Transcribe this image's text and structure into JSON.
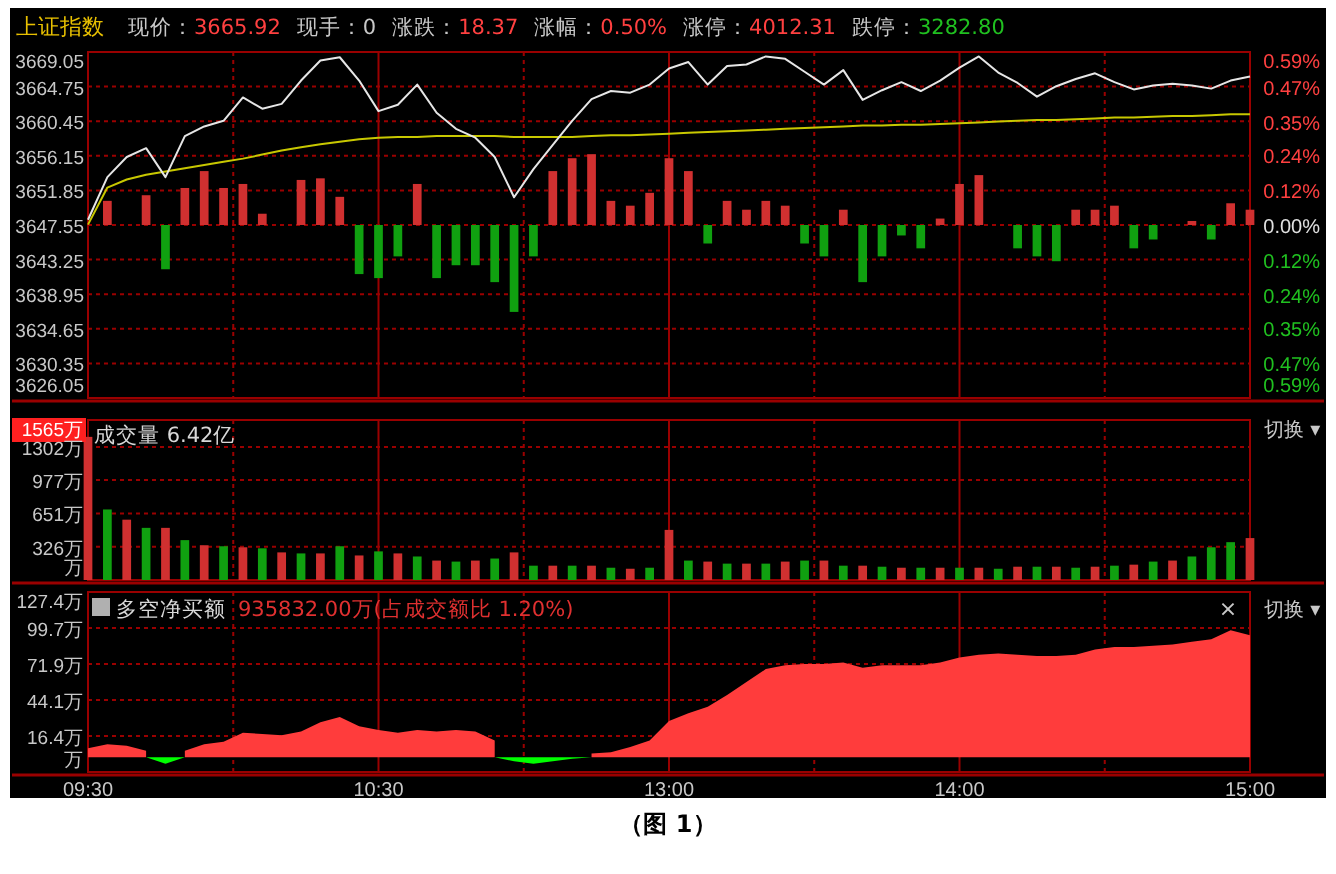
{
  "chart_data": [
    {
      "type": "line",
      "title": "上证指数",
      "annotations": [
        "现价：3665.92",
        "现手：0",
        "涨跌：18.37",
        "涨幅：0.50%",
        "涨停：4012.31",
        "跌停：3282.80"
      ],
      "categories": [
        null,
        null,
        null,
        null,
        null,
        null,
        null,
        null,
        null,
        null,
        null,
        null,
        null,
        null,
        null,
        null,
        null,
        null,
        null,
        null,
        null,
        null,
        null,
        null,
        null,
        null,
        null,
        null,
        null,
        null,
        null,
        null,
        null,
        null,
        null,
        null,
        null,
        null,
        null,
        null,
        null,
        null,
        null,
        null,
        null,
        null,
        null,
        null,
        null,
        null,
        null,
        null,
        null,
        null,
        null,
        null,
        null,
        null,
        null,
        null,
        null
      ],
      "tick_labels": "y",
      "grid": true,
      "ylim": [
        3626.05,
        3669.05
      ],
      "yticks": [
        3669.05,
        3664.75,
        3660.45,
        3656.15,
        3651.85,
        3647.55,
        3643.25,
        3638.95,
        3634.65,
        3630.35,
        3626.05
      ],
      "y2lim": [
        -0.59,
        0.59
      ],
      "y2ticks": [
        {
          "value": 0.59,
          "label": "0.59%"
        },
        {
          "value": 0.47,
          "label": "0.47%"
        },
        {
          "value": 0.35,
          "label": "0.35%"
        },
        {
          "value": 0.24,
          "label": "0.24%"
        },
        {
          "value": 0.12,
          "label": "0.12%"
        },
        {
          "value": 0,
          "label": "0.00%"
        },
        {
          "value": -0.12,
          "label": "0.12%"
        },
        {
          "value": -0.24,
          "label": "0.24%"
        },
        {
          "value": -0.35,
          "label": "0.35%"
        },
        {
          "value": -0.47,
          "label": "0.47%"
        },
        {
          "value": -0.59,
          "label": "0.59%"
        }
      ],
      "series": [
        {
          "type": "bar",
          "values": [
            null,
            3.0,
            null,
            3.7,
            -5.5,
            4.6,
            6.7,
            4.6,
            5.1,
            1.4,
            null,
            5.6,
            5.8,
            3.5,
            -6.1,
            -6.6,
            -3.9,
            5.1,
            -6.6,
            -5.0,
            -5.0,
            -7.1,
            -10.8,
            -3.9,
            6.7,
            8.3,
            8.8,
            3.0,
            2.4,
            4.0,
            8.3,
            6.7,
            -2.3,
            3.0,
            1.9,
            3.0,
            2.4,
            -2.3,
            -3.9,
            1.9,
            -7.1,
            -3.9,
            -1.3,
            -2.9,
            0.8,
            5.1,
            6.2,
            null,
            -2.9,
            -3.9,
            -4.5,
            1.9,
            1.9,
            2.4,
            -2.9,
            -1.8,
            null,
            0.5,
            -1.8,
            2.7,
            1.9
          ],
          "colors": [
            null,
            "#d03030",
            null,
            "#d03030",
            "#10a010",
            "#d03030",
            "#d03030",
            "#d03030",
            "#d03030",
            "#d03030",
            null,
            "#d03030",
            "#d03030",
            "#d03030",
            "#10a010",
            "#10a010",
            "#10a010",
            "#d03030",
            "#10a010",
            "#10a010",
            "#10a010",
            "#10a010",
            "#10a010",
            "#10a010",
            "#d03030",
            "#d03030",
            "#d03030",
            "#d03030",
            "#d03030",
            "#d03030",
            "#d03030",
            "#d03030",
            "#10a010",
            "#d03030",
            "#d03030",
            "#d03030",
            "#d03030",
            "#10a010",
            "#10a010",
            "#d03030",
            "#10a010",
            "#10a010",
            "#10a010",
            "#10a010",
            "#d03030",
            "#d03030",
            "#d03030",
            null,
            "#10a010",
            "#10a010",
            "#10a010",
            "#d03030",
            "#d03030",
            "#d03030",
            "#10a010",
            "#10a010",
            null,
            "#d03030",
            "#10a010",
            "#d03030",
            "#d03030"
          ],
          "base": [
            null,
            3647.55,
            null,
            3647.55,
            3647.55,
            3647.55,
            3647.55,
            3647.55,
            3647.55,
            3647.55,
            null,
            3647.55,
            3647.55,
            3647.55,
            3647.55,
            3647.55,
            3647.55,
            3647.55,
            3647.55,
            3647.55,
            3647.55,
            3647.55,
            3647.55,
            3647.55,
            3647.55,
            3647.55,
            3647.55,
            3647.55,
            3647.55,
            3647.55,
            3647.55,
            3647.55,
            3647.55,
            3647.55,
            3647.55,
            3647.55,
            3647.55,
            3647.55,
            3647.55,
            3647.55,
            3647.55,
            3647.55,
            3647.55,
            3647.55,
            3647.55,
            3647.55,
            3647.55,
            null,
            3647.55,
            3647.55,
            3647.55,
            3647.55,
            3647.55,
            3647.55,
            3647.55,
            3647.55,
            null,
            3647.55,
            3647.55,
            3647.55,
            3647.55
          ]
        },
        {
          "type": "line",
          "color": "#c8c800",
          "values": [
            3647.6,
            3652.2,
            3653.2,
            3653.8,
            3654.2,
            3654.6,
            3655.0,
            3655.4,
            3655.8,
            3656.3,
            3656.8,
            3657.2,
            3657.6,
            3657.9,
            3658.2,
            3658.4,
            3658.5,
            3658.5,
            3658.6,
            3658.6,
            3658.6,
            3658.6,
            3658.5,
            3658.5,
            3658.5,
            3658.5,
            3658.6,
            3658.7,
            3658.7,
            3658.8,
            3658.9,
            3659.0,
            3659.1,
            3659.2,
            3659.3,
            3659.4,
            3659.5,
            3659.6,
            3659.7,
            3659.8,
            3659.9,
            3659.9,
            3660.0,
            3660.0,
            3660.1,
            3660.2,
            3660.3,
            3660.4,
            3660.5,
            3660.6,
            3660.6,
            3660.7,
            3660.8,
            3660.9,
            3660.9,
            3661.0,
            3661.1,
            3661.1,
            3661.2,
            3661.3,
            3661.3
          ]
        },
        {
          "color": "#e6e6e6",
          "values": [
            3648.2,
            3653.5,
            3656.0,
            3657.1,
            3653.5,
            3658.6,
            3659.8,
            3660.5,
            3663.4,
            3662.0,
            3662.6,
            3665.5,
            3668.0,
            3668.4,
            3665.5,
            3661.7,
            3662.5,
            3665.0,
            3661.5,
            3659.5,
            3658.4,
            3656.0,
            3651.0,
            3654.5,
            3657.5,
            3660.5,
            3663.2,
            3664.2,
            3664.0,
            3665.0,
            3667.0,
            3667.8,
            3665.0,
            3667.3,
            3667.5,
            3668.5,
            3668.2,
            3666.6,
            3665.0,
            3666.8,
            3663.1,
            3664.3,
            3665.3,
            3664.2,
            3665.5,
            3667.1,
            3668.5,
            3666.5,
            3665.2,
            3663.5,
            3664.8,
            3665.7,
            3666.4,
            3665.3,
            3664.4,
            3664.9,
            3665.1,
            3664.9,
            3664.5,
            3665.5,
            3666.0
          ]
        }
      ]
    },
    {
      "type": "bar",
      "title": "成交量 6.42亿",
      "annotations": [
        "切换 ▾"
      ],
      "categories": [
        null,
        null,
        null,
        null,
        null,
        null,
        null,
        null,
        null,
        null,
        null,
        null,
        null,
        null,
        null,
        null,
        null,
        null,
        null,
        null,
        null,
        null,
        null,
        null,
        null,
        null,
        null,
        null,
        null,
        null,
        null,
        null,
        null,
        null,
        null,
        null,
        null,
        null,
        null,
        null,
        null,
        null,
        null,
        null,
        null,
        null,
        null,
        null,
        null,
        null,
        null,
        null,
        null,
        null,
        null,
        null,
        null,
        null,
        null,
        null,
        null
      ],
      "tick_labels": "y",
      "grid": true,
      "ylim": [
        0,
        1565
      ],
      "yticks": [
        {
          "value": 1565,
          "label": "1565万"
        },
        {
          "value": 1302,
          "label": "1302万"
        },
        {
          "value": 977,
          "label": "977万"
        },
        {
          "value": 651,
          "label": "651万"
        },
        {
          "value": 326,
          "label": "326万"
        },
        {
          "value": 0,
          "label": "万"
        }
      ],
      "values": [
        1400,
        690,
        590,
        510,
        510,
        390,
        340,
        330,
        320,
        310,
        270,
        260,
        260,
        330,
        240,
        280,
        260,
        230,
        190,
        180,
        190,
        210,
        270,
        140,
        140,
        140,
        140,
        120,
        110,
        120,
        490,
        190,
        180,
        160,
        160,
        160,
        180,
        190,
        190,
        140,
        140,
        130,
        120,
        120,
        120,
        120,
        120,
        110,
        130,
        130,
        130,
        120,
        130,
        140,
        150,
        180,
        190,
        230,
        320,
        370,
        410
      ],
      "colors": [
        "#d03030",
        "#10a010",
        "#d03030",
        "#10a010",
        "#d03030",
        "#10a010",
        "#d03030",
        "#10a010",
        "#d03030",
        "#10a010",
        "#d03030",
        "#10a010",
        "#d03030",
        "#10a010",
        "#d03030",
        "#10a010",
        "#d03030",
        "#10a010",
        "#d03030",
        "#10a010",
        "#d03030",
        "#10a010",
        "#d03030",
        "#10a010",
        "#d03030",
        "#10a010",
        "#d03030",
        "#10a010",
        "#d03030",
        "#10a010",
        "#d03030",
        "#10a010",
        "#d03030",
        "#10a010",
        "#d03030",
        "#10a010",
        "#d03030",
        "#10a010",
        "#d03030",
        "#10a010",
        "#d03030",
        "#10a010",
        "#d03030",
        "#10a010",
        "#d03030",
        "#10a010",
        "#d03030",
        "#10a010",
        "#d03030",
        "#10a010",
        "#d03030",
        "#10a010",
        "#d03030",
        "#10a010",
        "#d03030",
        "#10a010",
        "#d03030",
        "#10a010",
        "#10a010",
        "#10a010",
        "#d03030"
      ]
    },
    {
      "type": "area",
      "title": "多空净买额",
      "subtitle": "935832.00万(占成交额比 1.20%)",
      "annotations": [
        "×",
        "切换 ▾",
        "（图 1）"
      ],
      "categories": [
        "09:30",
        null,
        null,
        null,
        null,
        null,
        null,
        null,
        null,
        null,
        null,
        null,
        null,
        null,
        null,
        "10:30",
        null,
        null,
        null,
        null,
        null,
        null,
        null,
        null,
        null,
        null,
        null,
        null,
        null,
        null,
        "13:00",
        null,
        null,
        null,
        null,
        null,
        null,
        null,
        null,
        null,
        null,
        null,
        null,
        null,
        null,
        "14:00",
        null,
        null,
        null,
        null,
        null,
        null,
        null,
        null,
        null,
        null,
        null,
        null,
        null,
        null,
        "15:00"
      ],
      "grid": true,
      "ylim": [
        -11.3,
        127.4
      ],
      "yticks": [
        {
          "value": 127.4,
          "label": "127.4万"
        },
        {
          "value": 99.7,
          "label": "99.7万"
        },
        {
          "value": 71.9,
          "label": "71.9万"
        },
        {
          "value": 44.1,
          "label": "44.1万"
        },
        {
          "value": 16.4,
          "label": "16.4万"
        },
        {
          "value": -11.3,
          "label": "万"
        }
      ],
      "series": [
        {
          "color": "#ff3c3c",
          "values": [
            7,
            10,
            9,
            5,
            null,
            5,
            10,
            12,
            19,
            18,
            17,
            20,
            27,
            31,
            24,
            21,
            19,
            21,
            20,
            21,
            20,
            13,
            null,
            null,
            null,
            null,
            3,
            4,
            8,
            13,
            28,
            34,
            39,
            48,
            58,
            68,
            71,
            72,
            72,
            73,
            69,
            71,
            71,
            71,
            73,
            77,
            79,
            80,
            79,
            78,
            78,
            79,
            83,
            85,
            85,
            86,
            87,
            89,
            91,
            98,
            94
          ]
        },
        {
          "color": "#00ff00",
          "values": [
            null,
            null,
            null,
            0,
            -5,
            0,
            null,
            null,
            null,
            null,
            null,
            null,
            null,
            null,
            null,
            null,
            null,
            null,
            null,
            null,
            null,
            0,
            -3,
            -5,
            -3,
            -1,
            0,
            null,
            null,
            null,
            null,
            null,
            null,
            null,
            null,
            null,
            null,
            null,
            null,
            null,
            null,
            null,
            null,
            null,
            null,
            null,
            null,
            null,
            null,
            null,
            null,
            null,
            null,
            null,
            null,
            null,
            null,
            null,
            null,
            null,
            null
          ]
        }
      ]
    }
  ]
}
